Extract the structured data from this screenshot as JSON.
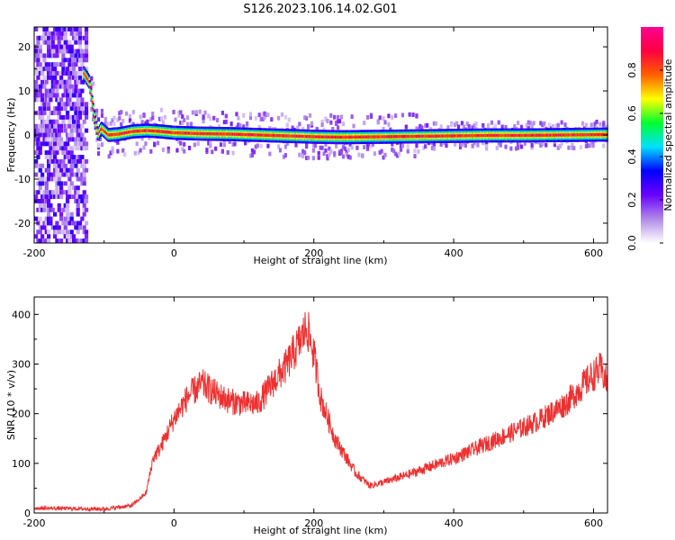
{
  "title": "S126.2023.106.14.02.G01",
  "chart_data": [
    {
      "type": "heatmap",
      "xlabel": "Height of straight line (km)",
      "ylabel": "Frequency (Hz)",
      "xlim": [
        -200,
        620
      ],
      "ylim": [
        -24.5,
        24.5
      ],
      "xticks": [
        -200,
        0,
        200,
        400,
        600
      ],
      "xtick_labels": [
        "-200",
        "0",
        "200",
        "400",
        "600"
      ],
      "yticks": [
        -20,
        -10,
        0,
        10,
        20
      ],
      "ytick_labels": [
        "-20",
        "-10",
        "0",
        "10",
        "20"
      ],
      "colorbar": {
        "label": "Normalized spectral amplitude",
        "range": [
          0,
          1
        ],
        "ticks": [
          0,
          0.2,
          0.4,
          0.6,
          0.8
        ],
        "tick_labels": [
          "0.0",
          "0.2",
          "0.4",
          "0.6",
          "0.8"
        ],
        "colors": [
          "#ffffff",
          "#b08ae8",
          "#6a00ff",
          "#0000ff",
          "#00e0ff",
          "#00ff30",
          "#ffff00",
          "#ff6000",
          "#ff0040",
          "#ff0090"
        ]
      },
      "ridge": {
        "description_points_x": [
          -130,
          -122,
          -115,
          -110,
          -105,
          -95,
          -80,
          -60,
          -40,
          -20,
          0,
          40,
          80,
          120,
          160,
          200,
          240,
          300,
          350,
          400,
          450,
          500,
          560,
          620
        ],
        "frequency_y": [
          14,
          12,
          4,
          0,
          1.5,
          0,
          0.2,
          0.8,
          1,
          0.8,
          0.5,
          0.3,
          0.2,
          0,
          -0.2,
          -0.4,
          -0.5,
          -0.4,
          -0.3,
          -0.2,
          -0.1,
          -0.1,
          0,
          0.1
        ]
      }
    },
    {
      "type": "line",
      "xlabel": "Height of straight line (km)",
      "ylabel": "SNR (10 * v/v)",
      "xlim": [
        -200,
        620
      ],
      "ylim": [
        0,
        435
      ],
      "xticks": [
        -200,
        0,
        200,
        400,
        600
      ],
      "xtick_labels": [
        "-200",
        "0",
        "200",
        "400",
        "600"
      ],
      "yticks": [
        0,
        100,
        200,
        300,
        400
      ],
      "ytick_labels": [
        "0",
        "100",
        "200",
        "300",
        "400"
      ],
      "series": [
        {
          "color": "#ee3030",
          "x": [
            -200,
            -150,
            -100,
            -60,
            -40,
            -30,
            -20,
            0,
            20,
            40,
            60,
            80,
            100,
            120,
            140,
            160,
            180,
            190,
            200,
            210,
            230,
            260,
            280,
            300,
            330,
            360,
            400,
            440,
            480,
            520,
            560,
            590,
            610,
            620
          ],
          "y": [
            10,
            9,
            8,
            15,
            40,
            110,
            130,
            190,
            235,
            260,
            240,
            225,
            220,
            220,
            260,
            295,
            345,
            375,
            320,
            230,
            150,
            80,
            55,
            62,
            75,
            90,
            110,
            135,
            160,
            185,
            220,
            265,
            290,
            260
          ]
        }
      ]
    }
  ]
}
